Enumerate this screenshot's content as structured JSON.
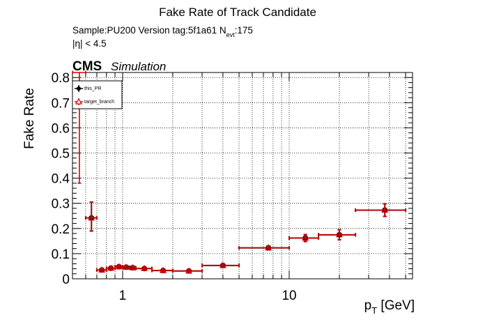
{
  "chart_data": {
    "type": "scatter",
    "title": "Fake Rate of Track Candidate",
    "info": {
      "sample_text": "Sample:PU200   Version tag:5f1a61  N",
      "nevt_sub": "evt",
      "nevt_value": ":175",
      "eta_cut": "|η| < 4.5"
    },
    "cms_label": "CMS",
    "simulation_label": "Simulation",
    "xlabel_main": "p",
    "xlabel_sub": "T",
    "xlabel_unit": " [GeV]",
    "ylabel": "Fake Rate",
    "x_scale": "log",
    "xlim": [
      0.5,
      55
    ],
    "ylim": [
      0,
      0.82
    ],
    "x_ticks": [
      {
        "value": 1,
        "label": "1"
      },
      {
        "value": 10,
        "label": "10"
      }
    ],
    "y_ticks": [
      {
        "value": 0,
        "label": "0"
      },
      {
        "value": 0.1,
        "label": "0.1"
      },
      {
        "value": 0.2,
        "label": "0.2"
      },
      {
        "value": 0.3,
        "label": "0.3"
      },
      {
        "value": 0.4,
        "label": "0.4"
      },
      {
        "value": 0.5,
        "label": "0.5"
      },
      {
        "value": 0.6,
        "label": "0.6"
      },
      {
        "value": 0.7,
        "label": "0.7"
      },
      {
        "value": 0.8,
        "label": "0.8"
      }
    ],
    "grid": true,
    "legend_position": "top-left",
    "series": [
      {
        "name": "this_PR",
        "marker": "filled-circle",
        "color": "#000000",
        "points": [
          {
            "x": 0.65,
            "y": 0.242,
            "xlo": 0.6,
            "xhi": 0.7,
            "ylo": 0.19,
            "yhi": 0.305
          },
          {
            "x": 0.75,
            "y": 0.035,
            "xlo": 0.7,
            "xhi": 0.8,
            "ylo": 0.028,
            "yhi": 0.042
          },
          {
            "x": 0.85,
            "y": 0.042,
            "xlo": 0.8,
            "xhi": 0.9,
            "ylo": 0.035,
            "yhi": 0.05
          },
          {
            "x": 0.95,
            "y": 0.048,
            "xlo": 0.9,
            "xhi": 1.0,
            "ylo": 0.041,
            "yhi": 0.055
          },
          {
            "x": 1.05,
            "y": 0.046,
            "xlo": 1.0,
            "xhi": 1.1,
            "ylo": 0.039,
            "yhi": 0.053
          },
          {
            "x": 1.15,
            "y": 0.044,
            "xlo": 1.1,
            "xhi": 1.2,
            "ylo": 0.037,
            "yhi": 0.051
          },
          {
            "x": 1.35,
            "y": 0.041,
            "xlo": 1.2,
            "xhi": 1.5,
            "ylo": 0.035,
            "yhi": 0.047
          },
          {
            "x": 1.75,
            "y": 0.033,
            "xlo": 1.5,
            "xhi": 2.0,
            "ylo": 0.028,
            "yhi": 0.039
          },
          {
            "x": 2.5,
            "y": 0.031,
            "xlo": 2.0,
            "xhi": 3.0,
            "ylo": 0.026,
            "yhi": 0.037
          },
          {
            "x": 4.0,
            "y": 0.053,
            "xlo": 3.0,
            "xhi": 5.0,
            "ylo": 0.046,
            "yhi": 0.06
          },
          {
            "x": 7.5,
            "y": 0.123,
            "xlo": 5.0,
            "xhi": 10.0,
            "ylo": 0.115,
            "yhi": 0.131
          },
          {
            "x": 12.5,
            "y": 0.162,
            "xlo": 10.0,
            "xhi": 15.0,
            "ylo": 0.148,
            "yhi": 0.176
          },
          {
            "x": 20.0,
            "y": 0.175,
            "xlo": 15.0,
            "xhi": 25.0,
            "ylo": 0.155,
            "yhi": 0.195
          },
          {
            "x": 37.5,
            "y": 0.273,
            "xlo": 25.0,
            "xhi": 50.0,
            "ylo": 0.248,
            "yhi": 0.298
          }
        ]
      },
      {
        "name": "target_branch",
        "marker": "open-triangle",
        "color": "#d40000",
        "points": [
          {
            "x": 0.55,
            "y": 0.82,
            "xlo": 0.5,
            "xhi": 0.6,
            "ylo": 0.38,
            "yhi": 0.82
          },
          {
            "x": 0.65,
            "y": 0.242,
            "xlo": 0.6,
            "xhi": 0.7,
            "ylo": 0.19,
            "yhi": 0.305
          },
          {
            "x": 0.75,
            "y": 0.035,
            "xlo": 0.7,
            "xhi": 0.8,
            "ylo": 0.028,
            "yhi": 0.042
          },
          {
            "x": 0.85,
            "y": 0.042,
            "xlo": 0.8,
            "xhi": 0.9,
            "ylo": 0.035,
            "yhi": 0.05
          },
          {
            "x": 0.95,
            "y": 0.048,
            "xlo": 0.9,
            "xhi": 1.0,
            "ylo": 0.041,
            "yhi": 0.055
          },
          {
            "x": 1.05,
            "y": 0.046,
            "xlo": 1.0,
            "xhi": 1.1,
            "ylo": 0.039,
            "yhi": 0.053
          },
          {
            "x": 1.15,
            "y": 0.044,
            "xlo": 1.1,
            "xhi": 1.2,
            "ylo": 0.037,
            "yhi": 0.051
          },
          {
            "x": 1.35,
            "y": 0.041,
            "xlo": 1.2,
            "xhi": 1.5,
            "ylo": 0.035,
            "yhi": 0.047
          },
          {
            "x": 1.75,
            "y": 0.033,
            "xlo": 1.5,
            "xhi": 2.0,
            "ylo": 0.028,
            "yhi": 0.039
          },
          {
            "x": 2.5,
            "y": 0.031,
            "xlo": 2.0,
            "xhi": 3.0,
            "ylo": 0.026,
            "yhi": 0.037
          },
          {
            "x": 4.0,
            "y": 0.053,
            "xlo": 3.0,
            "xhi": 5.0,
            "ylo": 0.046,
            "yhi": 0.06
          },
          {
            "x": 7.5,
            "y": 0.123,
            "xlo": 5.0,
            "xhi": 10.0,
            "ylo": 0.115,
            "yhi": 0.131
          },
          {
            "x": 12.5,
            "y": 0.162,
            "xlo": 10.0,
            "xhi": 15.0,
            "ylo": 0.148,
            "yhi": 0.176
          },
          {
            "x": 20.0,
            "y": 0.175,
            "xlo": 15.0,
            "xhi": 25.0,
            "ylo": 0.155,
            "yhi": 0.195
          },
          {
            "x": 37.5,
            "y": 0.273,
            "xlo": 25.0,
            "xhi": 50.0,
            "ylo": 0.248,
            "yhi": 0.298
          }
        ]
      }
    ]
  }
}
